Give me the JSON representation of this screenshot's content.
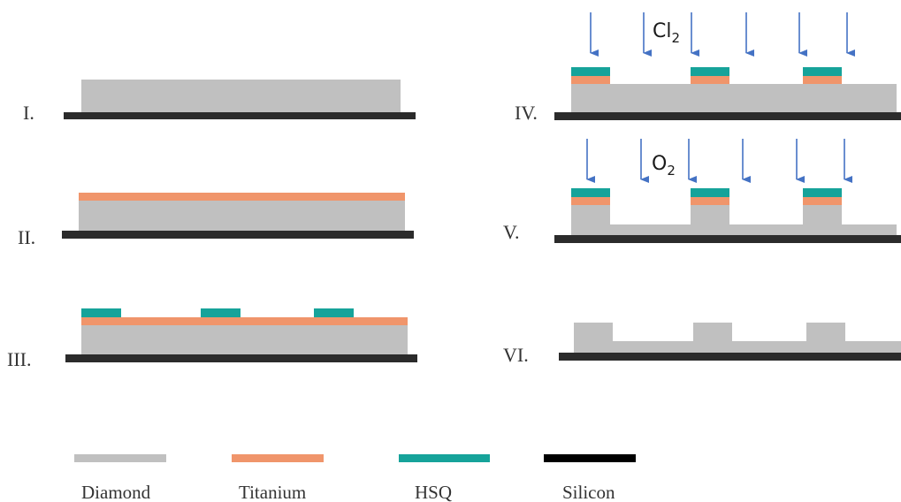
{
  "steps": {
    "I": "I.",
    "II": "II.",
    "III": "III.",
    "IV": "IV.",
    "V": "V.",
    "VI": "VI."
  },
  "gases": {
    "cl2": {
      "base": "Cl",
      "sub": "2"
    },
    "o2": {
      "base": "O",
      "sub": "2"
    }
  },
  "legend": {
    "diamond": "Diamond",
    "titanium": "Titanium",
    "hsq": "HSQ",
    "silicon": "Silicon"
  },
  "colors": {
    "diamond": "#c0c0c0",
    "titanium": "#f0956b",
    "hsq": "#16a39a",
    "silicon": "#2b2b2b",
    "silicon_legend": "#000000",
    "arrow": "#4472c4"
  }
}
